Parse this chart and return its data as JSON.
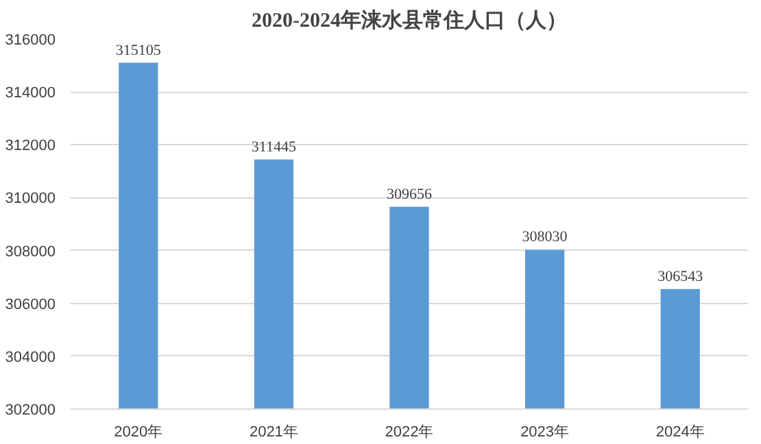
{
  "chart_data": {
    "type": "bar",
    "title": "2020-2024年涞水县常住人口（人）",
    "categories": [
      "2020年",
      "2021年",
      "2022年",
      "2023年",
      "2024年"
    ],
    "values": [
      315105,
      311445,
      309656,
      308030,
      306543
    ],
    "color": "#5b9bd5",
    "ylim": [
      302000,
      316000
    ],
    "yticks": [
      302000,
      304000,
      306000,
      308000,
      310000,
      312000,
      314000,
      316000
    ],
    "grid": "y",
    "data_labels": true
  }
}
